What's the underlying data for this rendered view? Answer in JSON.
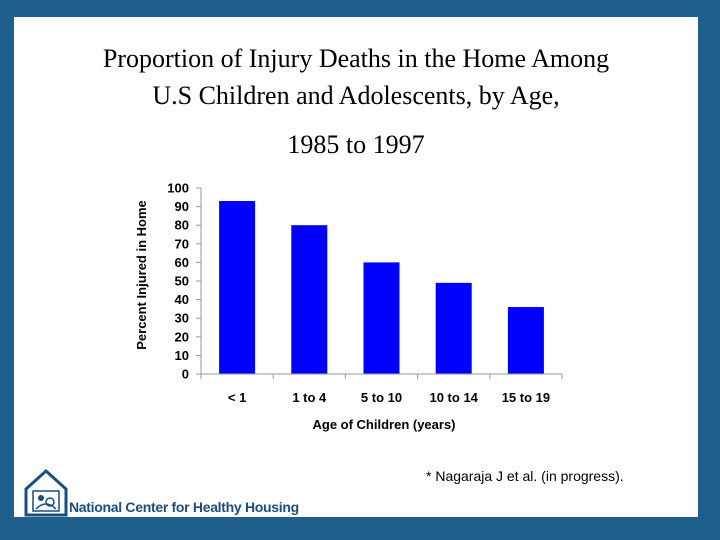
{
  "slide": {
    "title_line1": "Proportion of Injury Deaths in the Home Among",
    "title_line2": "U.S Children and Adolescents, by Age,",
    "title_line3": "1985 to 1997",
    "footnote": "* Nagaraja J et al. (in progress).",
    "org_name": "National Center for Healthy Housing"
  },
  "colors": {
    "frame": "#1f5f8b",
    "bar": "#0000ff",
    "brand": "#1a4d80"
  },
  "chart_data": {
    "type": "bar",
    "categories": [
      "< 1",
      "1 to 4",
      "5 to 10",
      "10 to 14",
      "15 to 19"
    ],
    "values": [
      93,
      80,
      60,
      49,
      36
    ],
    "title": "",
    "xlabel": "Age of Children (years)",
    "ylabel": "Percent Injured in Home",
    "ylim": [
      0,
      100
    ],
    "yticks": [
      0,
      10,
      20,
      30,
      40,
      50,
      60,
      70,
      80,
      90,
      100
    ],
    "grid": false,
    "legend": "none"
  }
}
